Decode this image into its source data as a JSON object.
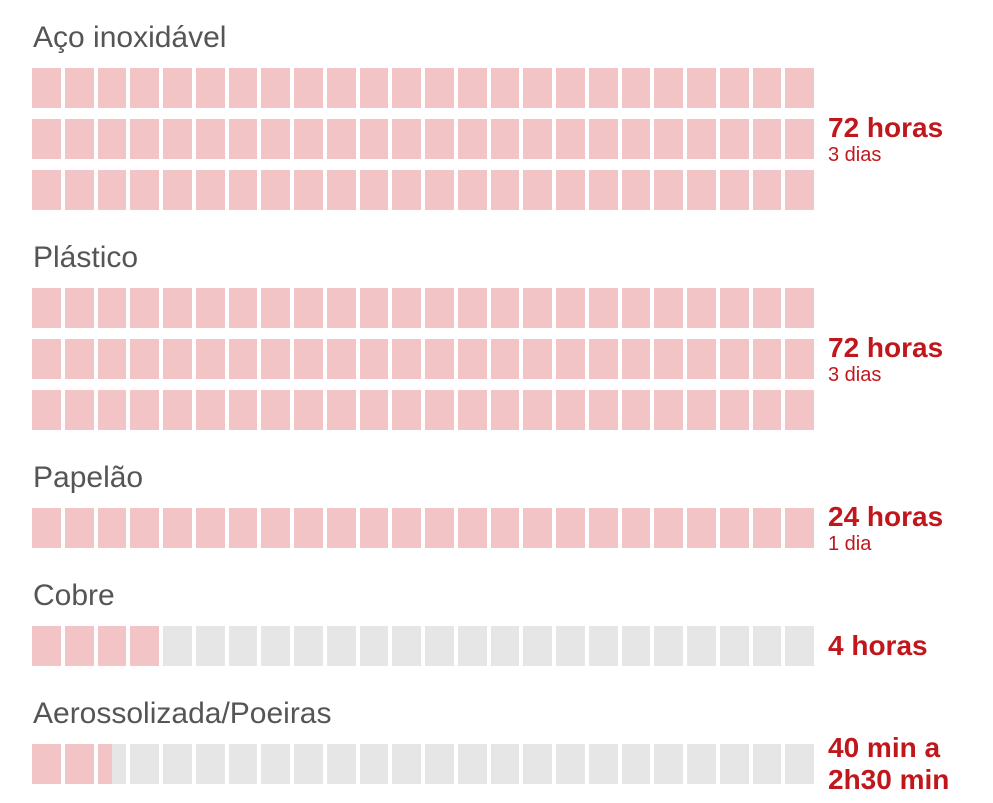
{
  "chart_data": {
    "type": "waffle",
    "categories": [
      "Aço inoxidável",
      "Plástico",
      "Papelão",
      "Cobre",
      "Aerossolizada/Poeiras"
    ],
    "values": [
      72,
      72,
      24,
      4,
      2.5
    ],
    "value_labels": [
      "72 horas",
      "72 horas",
      "24 horas",
      "4 horas",
      "40 min a 2h30 min"
    ],
    "sub_labels": [
      "3 dias",
      "3 dias",
      "1 dia",
      null,
      null
    ],
    "xlim": [
      0,
      24
    ],
    "color": "#f2c4c6",
    "empty_color": "#e6e6e6",
    "label_color": "#c0171d"
  }
}
